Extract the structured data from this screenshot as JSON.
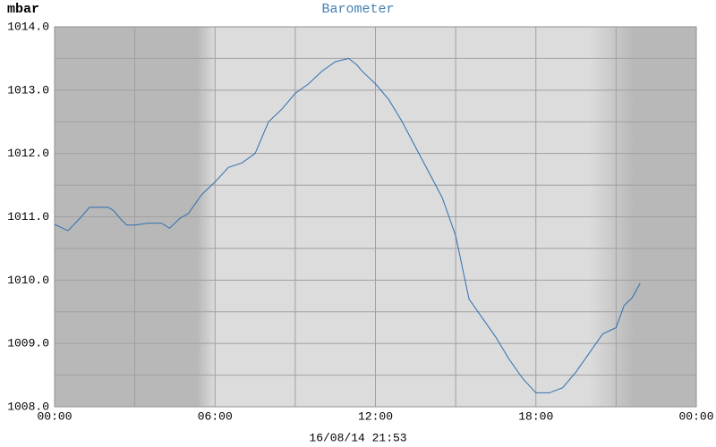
{
  "chart_data": {
    "type": "line",
    "title": "Barometer",
    "y_label": "mbar",
    "footer": "16/08/14 21:53",
    "xlim": [
      0,
      24
    ],
    "xticks": [
      {
        "value": 0,
        "label": "00:00"
      },
      {
        "value": 6,
        "label": "06:00"
      },
      {
        "value": 12,
        "label": "12:00"
      },
      {
        "value": 18,
        "label": "18:00"
      },
      {
        "value": 24,
        "label": "00:00"
      }
    ],
    "minor_xticks": [
      3,
      9,
      15,
      21
    ],
    "ylim": [
      1008,
      1014
    ],
    "yticks": [
      {
        "value": 1008,
        "label": "1008.0"
      },
      {
        "value": 1009,
        "label": "1009.0"
      },
      {
        "value": 1010,
        "label": "1010.0"
      },
      {
        "value": 1011,
        "label": "1011.0"
      },
      {
        "value": 1012,
        "label": "1012.0"
      },
      {
        "value": 1013,
        "label": "1013.0"
      },
      {
        "value": 1014,
        "label": "1014.0"
      }
    ],
    "minor_yticks": [
      1008.5,
      1009.5,
      1010.5,
      1011.5,
      1012.5,
      1013.5
    ],
    "grid": true,
    "daylight": [
      6,
      20
    ],
    "series": [
      {
        "name": "Barometer",
        "color": "#2f6fb0",
        "x": [
          0,
          0.5,
          1,
          1.3,
          1.7,
          2,
          2.2,
          2.5,
          2.7,
          3,
          3.5,
          4,
          4.3,
          4.7,
          5,
          5.5,
          6,
          6.5,
          7,
          7.5,
          8,
          8.5,
          9,
          9.5,
          10,
          10.5,
          11,
          11.3,
          11.5,
          12,
          12.5,
          13,
          13.5,
          14,
          14.5,
          15,
          15.5,
          16,
          16.5,
          17,
          17.5,
          18,
          18.5,
          19,
          19.5,
          20,
          20.5,
          21,
          21.3,
          21.6,
          21.9
        ],
        "values": [
          1010.88,
          1010.78,
          1011.0,
          1011.15,
          1011.15,
          1011.15,
          1011.1,
          1010.95,
          1010.87,
          1010.87,
          1010.9,
          1010.9,
          1010.82,
          1010.98,
          1011.05,
          1011.35,
          1011.55,
          1011.78,
          1011.85,
          1012.0,
          1012.5,
          1012.7,
          1012.95,
          1013.1,
          1013.3,
          1013.45,
          1013.5,
          1013.4,
          1013.3,
          1013.1,
          1012.85,
          1012.5,
          1012.1,
          1011.7,
          1011.3,
          1010.7,
          1009.7,
          1009.4,
          1009.1,
          1008.75,
          1008.45,
          1008.22,
          1008.22,
          1008.3,
          1008.55,
          1008.85,
          1009.15,
          1009.25,
          1009.6,
          1009.72,
          1009.95
        ]
      }
    ]
  }
}
